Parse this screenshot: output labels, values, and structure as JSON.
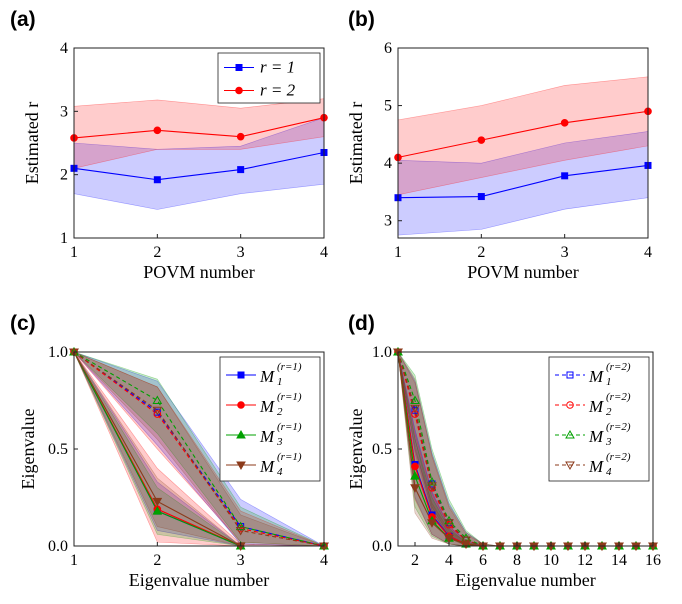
{
  "chart_data": [
    {
      "panel_label": "(a)",
      "type": "line",
      "xlabel": "POVM number",
      "ylabel": "Estimated r",
      "xlim": [
        1,
        4
      ],
      "ylim": [
        1,
        4
      ],
      "xticks": [
        "1",
        "2",
        "3",
        "4"
      ],
      "yticks": [
        "1",
        "2",
        "3",
        "4"
      ],
      "legend_position": "top-right",
      "x": [
        1,
        2,
        3,
        4
      ],
      "series": [
        {
          "name": "r = 1",
          "color": "#0000ff",
          "marker": "square",
          "values": [
            2.1,
            1.92,
            2.08,
            2.35
          ],
          "band_low": [
            1.7,
            1.45,
            1.7,
            1.85
          ],
          "band_high": [
            2.5,
            2.4,
            2.45,
            2.9
          ]
        },
        {
          "name": "r = 2",
          "color": "#ff0000",
          "marker": "circle",
          "values": [
            2.58,
            2.7,
            2.6,
            2.9
          ],
          "band_low": [
            2.1,
            2.4,
            2.4,
            2.6
          ],
          "band_high": [
            3.08,
            3.18,
            3.05,
            3.2
          ]
        }
      ]
    },
    {
      "panel_label": "(b)",
      "type": "line",
      "xlabel": "POVM number",
      "ylabel": "Estimated r",
      "xlim": [
        1,
        4
      ],
      "ylim": [
        2.7,
        6
      ],
      "xticks": [
        "1",
        "2",
        "3",
        "4"
      ],
      "yticks": [
        "3",
        "4",
        "5",
        "6"
      ],
      "legend_position": "none",
      "x": [
        1,
        2,
        3,
        4
      ],
      "series": [
        {
          "name": "",
          "color": "#0000ff",
          "marker": "square",
          "values": [
            3.4,
            3.42,
            3.78,
            3.96
          ],
          "band_low": [
            2.75,
            2.85,
            3.2,
            3.4
          ],
          "band_high": [
            4.05,
            4.0,
            4.35,
            4.55
          ]
        },
        {
          "name": "",
          "color": "#ff0000",
          "marker": "circle",
          "values": [
            4.1,
            4.4,
            4.7,
            4.9
          ],
          "band_low": [
            3.45,
            3.75,
            4.05,
            4.3
          ],
          "band_high": [
            4.75,
            5.0,
            5.35,
            5.5
          ]
        }
      ]
    },
    {
      "panel_label": "(c)",
      "type": "line",
      "xlabel": "Eigenvalue number",
      "ylabel": "Eigenvalue",
      "xlim": [
        1,
        4
      ],
      "ylim": [
        0,
        1
      ],
      "xticks": [
        "1",
        "2",
        "3",
        "4"
      ],
      "yticks": [
        "0.0",
        "0.5",
        "1.0"
      ],
      "legend_position": "top-right",
      "x": [
        1,
        2,
        3,
        4
      ],
      "series": [
        {
          "name": "M",
          "sub": "1",
          "sup": "(r=1)",
          "color": "#0000ff",
          "marker": "square",
          "dash": false,
          "values": [
            1,
            0.18,
            0,
            0
          ],
          "band_low": [
            1,
            0.08,
            0,
            0
          ],
          "band_high": [
            1,
            0.33,
            0,
            0
          ]
        },
        {
          "name": "M",
          "sub": "2",
          "sup": "(r=1)",
          "color": "#ff0000",
          "marker": "circle",
          "dash": false,
          "values": [
            1,
            0.19,
            0,
            0
          ],
          "band_low": [
            1,
            0.02,
            0,
            0
          ],
          "band_high": [
            1,
            0.4,
            0.01,
            0
          ]
        },
        {
          "name": "M",
          "sub": "3",
          "sup": "(r=1)",
          "color": "#00a000",
          "marker": "triangle-up",
          "dash": false,
          "values": [
            1,
            0.18,
            0,
            0
          ],
          "band_low": [
            1,
            0.06,
            0,
            0
          ],
          "band_high": [
            1,
            0.3,
            0,
            0
          ]
        },
        {
          "name": "M",
          "sub": "4",
          "sup": "(r=1)",
          "color": "#8b3a1a",
          "marker": "triangle-down",
          "dash": false,
          "values": [
            1,
            0.23,
            0,
            0
          ],
          "band_low": [
            1,
            0.1,
            0,
            0
          ],
          "band_high": [
            1,
            0.35,
            0,
            0
          ]
        },
        {
          "name": "",
          "color": "#0000ff",
          "marker": "square-open",
          "dash": true,
          "values": [
            1,
            0.69,
            0.1,
            0
          ],
          "band_low": [
            1,
            0.52,
            0.01,
            0
          ],
          "band_high": [
            1,
            0.85,
            0.24,
            0
          ]
        },
        {
          "name": "",
          "color": "#ff0000",
          "marker": "circle-open",
          "dash": true,
          "values": [
            1,
            0.68,
            0.09,
            0
          ],
          "band_low": [
            1,
            0.5,
            0.02,
            0
          ],
          "band_high": [
            1,
            0.82,
            0.18,
            0
          ]
        },
        {
          "name": "",
          "color": "#00a000",
          "marker": "triangle-up-open",
          "dash": true,
          "values": [
            1,
            0.75,
            0.1,
            0
          ],
          "band_low": [
            1,
            0.58,
            0.02,
            0
          ],
          "band_high": [
            1,
            0.86,
            0.2,
            0
          ]
        },
        {
          "name": "",
          "color": "#8b3a1a",
          "marker": "triangle-down-open",
          "dash": true,
          "values": [
            1,
            0.7,
            0.08,
            0
          ],
          "band_low": [
            1,
            0.55,
            0.01,
            0
          ],
          "band_high": [
            1,
            0.82,
            0.16,
            0
          ]
        }
      ]
    },
    {
      "panel_label": "(d)",
      "type": "line",
      "xlabel": "Eigenvalue number",
      "ylabel": "Eigenvalue",
      "xlim": [
        1,
        16
      ],
      "ylim": [
        0,
        1
      ],
      "xticks": [
        "2",
        "4",
        "6",
        "8",
        "10",
        "12",
        "14",
        "16"
      ],
      "yticks": [
        "0.0",
        "0.5",
        "1.0"
      ],
      "legend_position": "top-right",
      "x": [
        1,
        2,
        3,
        4,
        5,
        6,
        7,
        8,
        9,
        10,
        11,
        12,
        13,
        14,
        15,
        16
      ],
      "series": [
        {
          "name": "M",
          "sub": "1",
          "sup": "(r=2)",
          "color": "#0000ff",
          "marker": "square-open",
          "dash": true,
          "values": [
            1,
            0.7,
            0.32,
            0.12,
            0.03,
            0,
            0,
            0,
            0,
            0,
            0,
            0,
            0,
            0,
            0,
            0
          ],
          "band_low": [
            1,
            0.5,
            0.18,
            0.05,
            0,
            0,
            0,
            0,
            0,
            0,
            0,
            0,
            0,
            0,
            0,
            0
          ],
          "band_high": [
            1,
            0.85,
            0.48,
            0.22,
            0.07,
            0.01,
            0,
            0,
            0,
            0,
            0,
            0,
            0,
            0,
            0,
            0
          ]
        },
        {
          "name": "M",
          "sub": "2",
          "sup": "(r=2)",
          "color": "#ff0000",
          "marker": "circle-open",
          "dash": true,
          "values": [
            1,
            0.68,
            0.3,
            0.11,
            0.03,
            0,
            0,
            0,
            0,
            0,
            0,
            0,
            0,
            0,
            0,
            0
          ],
          "band_low": [
            1,
            0.48,
            0.16,
            0.04,
            0,
            0,
            0,
            0,
            0,
            0,
            0,
            0,
            0,
            0,
            0,
            0
          ],
          "band_high": [
            1,
            0.84,
            0.46,
            0.2,
            0.06,
            0.01,
            0,
            0,
            0,
            0,
            0,
            0,
            0,
            0,
            0,
            0
          ]
        },
        {
          "name": "M",
          "sub": "3",
          "sup": "(r=2)",
          "color": "#00a000",
          "marker": "triangle-up-open",
          "dash": true,
          "values": [
            1,
            0.75,
            0.33,
            0.13,
            0.04,
            0,
            0,
            0,
            0,
            0,
            0,
            0,
            0,
            0,
            0,
            0
          ],
          "band_low": [
            1,
            0.55,
            0.2,
            0.06,
            0,
            0,
            0,
            0,
            0,
            0,
            0,
            0,
            0,
            0,
            0,
            0
          ],
          "band_high": [
            1,
            0.88,
            0.5,
            0.24,
            0.08,
            0.01,
            0,
            0,
            0,
            0,
            0,
            0,
            0,
            0,
            0,
            0
          ]
        },
        {
          "name": "M",
          "sub": "4",
          "sup": "(r=2)",
          "color": "#8b3a1a",
          "marker": "triangle-down-open",
          "dash": true,
          "values": [
            1,
            0.71,
            0.31,
            0.12,
            0.03,
            0,
            0,
            0,
            0,
            0,
            0,
            0,
            0,
            0,
            0,
            0
          ],
          "band_low": [
            1,
            0.52,
            0.18,
            0.05,
            0,
            0,
            0,
            0,
            0,
            0,
            0,
            0,
            0,
            0,
            0,
            0
          ],
          "band_high": [
            1,
            0.86,
            0.47,
            0.21,
            0.07,
            0.01,
            0,
            0,
            0,
            0,
            0,
            0,
            0,
            0,
            0,
            0
          ]
        },
        {
          "name": "",
          "color": "#0000ff",
          "marker": "square",
          "dash": false,
          "values": [
            1,
            0.42,
            0.16,
            0.05,
            0.01,
            0,
            0,
            0,
            0,
            0,
            0,
            0,
            0,
            0,
            0,
            0
          ],
          "band_low": [
            1,
            0.25,
            0.06,
            0.01,
            0,
            0,
            0,
            0,
            0,
            0,
            0,
            0,
            0,
            0,
            0,
            0
          ],
          "band_high": [
            1,
            0.6,
            0.28,
            0.1,
            0.03,
            0,
            0,
            0,
            0,
            0,
            0,
            0,
            0,
            0,
            0,
            0
          ]
        },
        {
          "name": "",
          "color": "#ff0000",
          "marker": "circle",
          "dash": false,
          "values": [
            1,
            0.41,
            0.15,
            0.05,
            0.01,
            0,
            0,
            0,
            0,
            0,
            0,
            0,
            0,
            0,
            0,
            0
          ],
          "band_low": [
            1,
            0.24,
            0.06,
            0.01,
            0,
            0,
            0,
            0,
            0,
            0,
            0,
            0,
            0,
            0,
            0,
            0
          ],
          "band_high": [
            1,
            0.58,
            0.27,
            0.1,
            0.03,
            0,
            0,
            0,
            0,
            0,
            0,
            0,
            0,
            0,
            0,
            0
          ]
        },
        {
          "name": "",
          "color": "#00a000",
          "marker": "triangle-up",
          "dash": false,
          "values": [
            1,
            0.36,
            0.13,
            0.04,
            0.01,
            0,
            0,
            0,
            0,
            0,
            0,
            0,
            0,
            0,
            0,
            0
          ],
          "band_low": [
            1,
            0.2,
            0.05,
            0.01,
            0,
            0,
            0,
            0,
            0,
            0,
            0,
            0,
            0,
            0,
            0,
            0
          ],
          "band_high": [
            1,
            0.55,
            0.25,
            0.09,
            0.02,
            0,
            0,
            0,
            0,
            0,
            0,
            0,
            0,
            0,
            0,
            0
          ]
        },
        {
          "name": "",
          "color": "#8b3a1a",
          "marker": "triangle-down",
          "dash": false,
          "values": [
            1,
            0.3,
            0.12,
            0.04,
            0.01,
            0,
            0,
            0,
            0,
            0,
            0,
            0,
            0,
            0,
            0,
            0
          ],
          "band_low": [
            1,
            0.17,
            0.04,
            0.01,
            0,
            0,
            0,
            0,
            0,
            0,
            0,
            0,
            0,
            0,
            0,
            0
          ],
          "band_high": [
            1,
            0.5,
            0.22,
            0.08,
            0.02,
            0,
            0,
            0,
            0,
            0,
            0,
            0,
            0,
            0,
            0,
            0
          ]
        }
      ]
    }
  ]
}
